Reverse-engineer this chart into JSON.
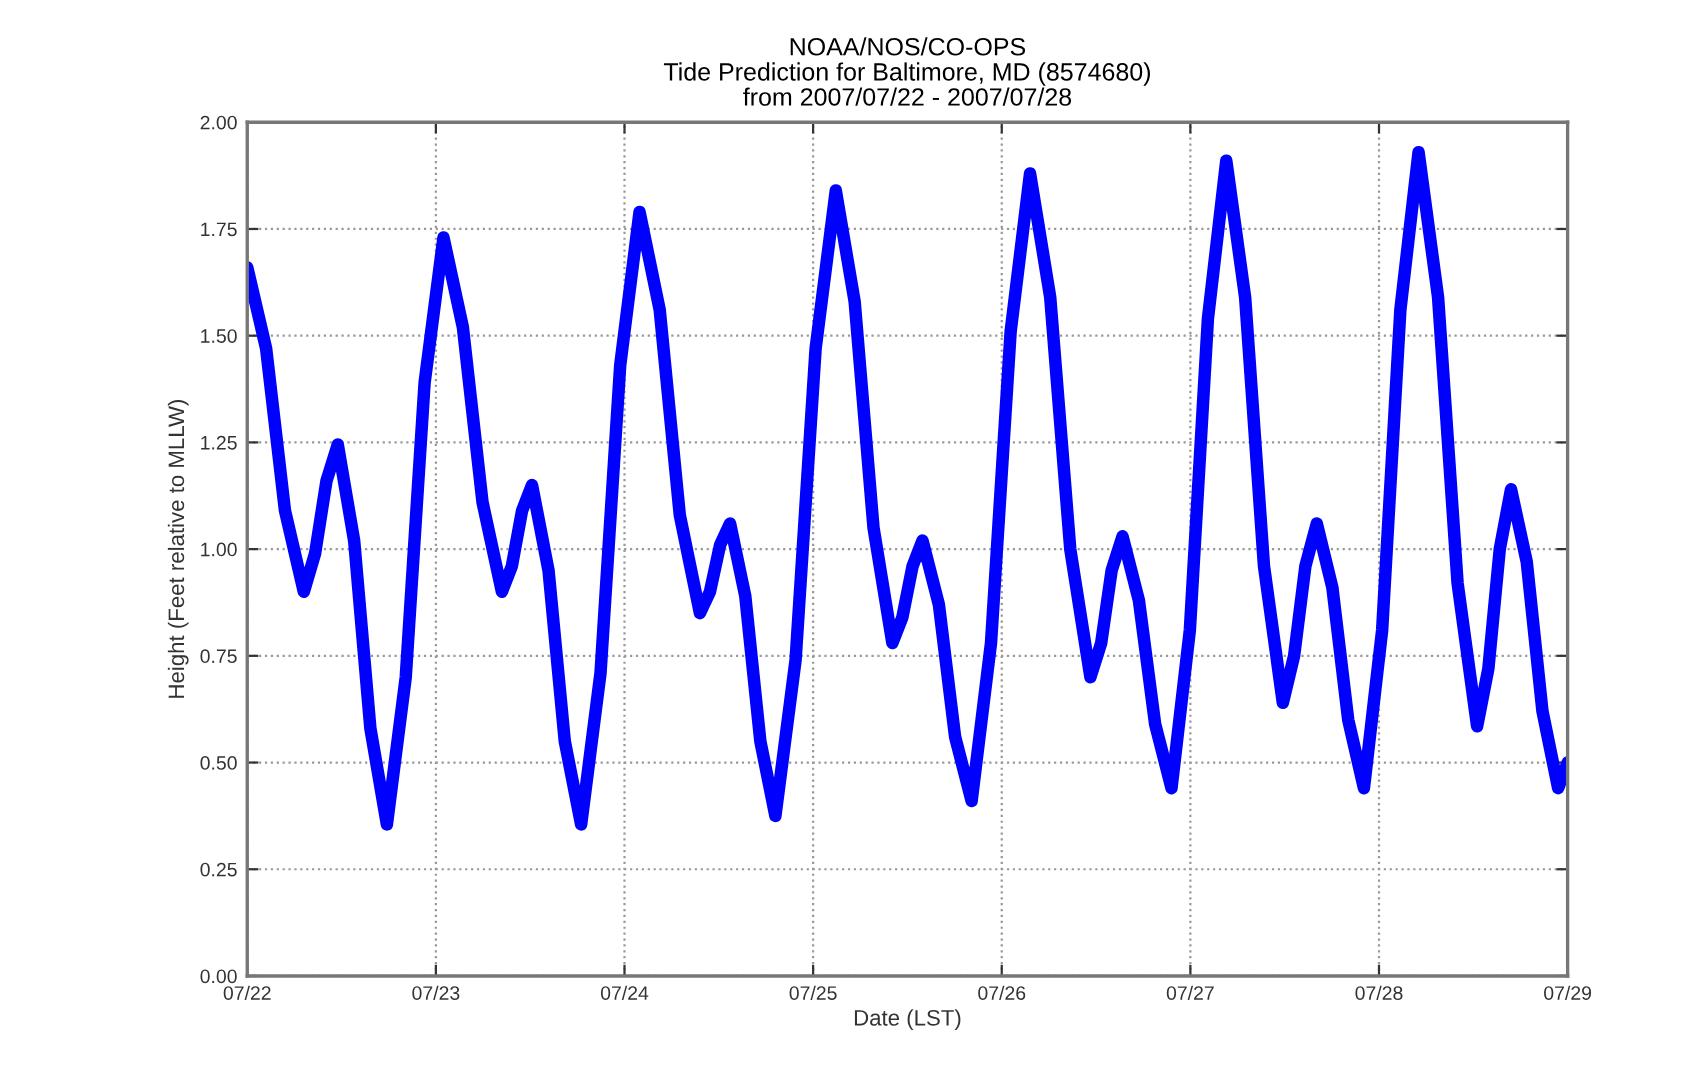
{
  "chart_data": {
    "type": "line",
    "title": "NOAA/NOS/CO-OPS\nTide Prediction for Baltimore, MD (8574680)\nfrom 2007/07/22 - 2007/07/28",
    "xlabel": "Date (LST)",
    "ylabel": "Height (Feet relative to MLLW)",
    "x": [
      "2007-07-22T00:00",
      "2007-07-22T02:24",
      "2007-07-22T04:48",
      "2007-07-22T07:12",
      "2007-07-22T08:38",
      "2007-07-22T10:05",
      "2007-07-22T11:31",
      "2007-07-22T13:36",
      "2007-07-22T15:40",
      "2007-07-22T17:46",
      "2007-07-22T20:10",
      "2007-07-22T22:34",
      "2007-07-23T00:58",
      "2007-07-23T03:26",
      "2007-07-23T05:56",
      "2007-07-23T08:24",
      "2007-07-23T09:40",
      "2007-07-23T10:58",
      "2007-07-23T12:14",
      "2007-07-23T14:20",
      "2007-07-23T16:24",
      "2007-07-23T18:29",
      "2007-07-23T20:57",
      "2007-07-23T23:27",
      "2007-07-24T01:55",
      "2007-07-24T04:29",
      "2007-07-24T07:02",
      "2007-07-24T09:36",
      "2007-07-24T10:52",
      "2007-07-24T12:10",
      "2007-07-24T13:26",
      "2007-07-24T15:22",
      "2007-07-24T17:17",
      "2007-07-24T19:12",
      "2007-07-24T21:46",
      "2007-07-25T00:19",
      "2007-07-25T02:53",
      "2007-07-25T05:17",
      "2007-07-25T07:41",
      "2007-07-25T10:05",
      "2007-07-25T11:21",
      "2007-07-25T12:39",
      "2007-07-25T13:55",
      "2007-07-25T16:00",
      "2007-07-25T18:04",
      "2007-07-25T20:10",
      "2007-07-25T22:38",
      "2007-07-26T01:08",
      "2007-07-26T03:36",
      "2007-07-26T06:10",
      "2007-07-26T08:43",
      "2007-07-26T11:17",
      "2007-07-26T12:39",
      "2007-07-26T13:59",
      "2007-07-26T15:22",
      "2007-07-26T17:27",
      "2007-07-26T19:31",
      "2007-07-26T21:36",
      "2007-07-26T23:56",
      "2007-07-27T02:14",
      "2007-07-27T04:34",
      "2007-07-27T06:58",
      "2007-07-27T09:22",
      "2007-07-27T11:46",
      "2007-07-27T13:12",
      "2007-07-27T14:38",
      "2007-07-27T16:05",
      "2007-07-27T18:04",
      "2007-07-27T20:05",
      "2007-07-27T22:05",
      "2007-07-28T00:24",
      "2007-07-28T02:43",
      "2007-07-28T05:02",
      "2007-07-28T07:31",
      "2007-07-28T10:00",
      "2007-07-28T12:29",
      "2007-07-28T13:55",
      "2007-07-28T15:22",
      "2007-07-28T16:48",
      "2007-07-28T18:48",
      "2007-07-28T20:48",
      "2007-07-28T22:48",
      "2007-07-29T00:00"
    ],
    "series": [
      {
        "color": "#0000ff",
        "values": [
          1.66,
          1.47,
          1.09,
          0.9,
          0.99,
          1.16,
          1.245,
          1.02,
          0.58,
          0.355,
          0.7,
          1.39,
          1.73,
          1.52,
          1.11,
          0.9,
          0.96,
          1.09,
          1.15,
          0.95,
          0.55,
          0.355,
          0.71,
          1.43,
          1.79,
          1.56,
          1.08,
          0.85,
          0.9,
          1.01,
          1.06,
          0.89,
          0.55,
          0.375,
          0.74,
          1.47,
          1.84,
          1.58,
          1.05,
          0.78,
          0.84,
          0.96,
          1.02,
          0.87,
          0.56,
          0.41,
          0.78,
          1.51,
          1.88,
          1.59,
          1.0,
          0.7,
          0.78,
          0.95,
          1.03,
          0.88,
          0.59,
          0.44,
          0.81,
          1.54,
          1.91,
          1.59,
          0.96,
          0.64,
          0.75,
          0.96,
          1.06,
          0.91,
          0.6,
          0.44,
          0.81,
          1.56,
          1.93,
          1.59,
          0.92,
          0.585,
          0.72,
          1.0,
          1.14,
          0.97,
          0.62,
          0.44,
          0.5
        ]
      }
    ],
    "xlim": [
      "2007-07-22T00:00",
      "2007-07-29T00:00"
    ],
    "xticks": [
      {
        "value": "2007-07-22",
        "label": "07/22"
      },
      {
        "value": "2007-07-23",
        "label": "07/23"
      },
      {
        "value": "2007-07-24",
        "label": "07/24"
      },
      {
        "value": "2007-07-25",
        "label": "07/25"
      },
      {
        "value": "2007-07-26",
        "label": "07/26"
      },
      {
        "value": "2007-07-27",
        "label": "07/27"
      },
      {
        "value": "2007-07-28",
        "label": "07/28"
      },
      {
        "value": "2007-07-29",
        "label": "07/29"
      }
    ],
    "ylim": [
      0,
      2
    ],
    "yticks": [
      {
        "value": 0,
        "label": "0.00"
      },
      {
        "value": 0.25,
        "label": "0.25"
      },
      {
        "value": 0.5,
        "label": "0.50"
      },
      {
        "value": 0.75,
        "label": "0.75"
      },
      {
        "value": 1,
        "label": "1.00"
      },
      {
        "value": 1.25,
        "label": "1.25"
      },
      {
        "value": 1.5,
        "label": "1.50"
      },
      {
        "value": 1.75,
        "label": "1.75"
      },
      {
        "value": 2,
        "label": "2.00"
      }
    ],
    "grid": true,
    "line_style": "solid",
    "marker": "none"
  }
}
